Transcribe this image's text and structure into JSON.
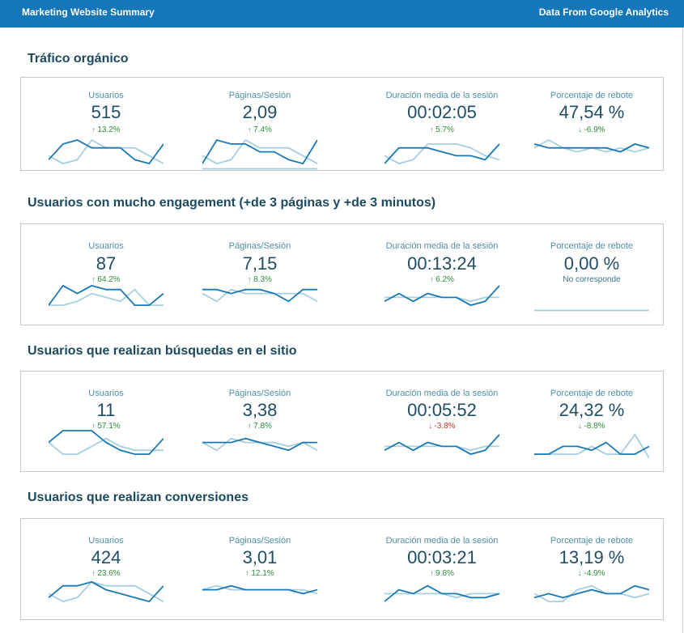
{
  "header": {
    "title": "Marketing Website Summary",
    "source": "Data From Google Analytics"
  },
  "colors": {
    "primary_line": "#1a78b4",
    "secondary_line": "#a5cfe0",
    "header_bg": "#1576b8"
  },
  "sections": [
    {
      "title": "Tráfico orgánico",
      "metrics": [
        {
          "label": "Usuarios",
          "value": "515",
          "delta": "13.2%",
          "trend": "up",
          "primary": [
            2,
            6,
            7,
            5,
            5,
            5,
            2,
            1,
            6
          ],
          "secondary": [
            3,
            1,
            2,
            7,
            5,
            5,
            5,
            3,
            1
          ],
          "baseline": false
        },
        {
          "label": "Páginas/Sesión",
          "value": "2,09",
          "delta": "7.4%",
          "trend": "up",
          "primary": [
            1,
            7,
            6,
            6,
            4,
            4,
            2,
            1,
            7
          ],
          "secondary": [
            3,
            1,
            2,
            7,
            5,
            5,
            5,
            3,
            1
          ],
          "baseline": true
        },
        {
          "label": "Duración media de la sesión",
          "value": "00:02:05",
          "delta": "5.7%",
          "trend": "up",
          "primary": [
            1,
            5,
            5,
            5,
            4,
            3,
            3,
            2,
            6
          ],
          "secondary": [
            3,
            1,
            2,
            6,
            6,
            6,
            5,
            3,
            2
          ],
          "baseline": false
        },
        {
          "label": "Porcentaje de rebote",
          "value": "47,54 %",
          "delta": "-6.9%",
          "trend": "down",
          "primary": [
            6,
            5,
            5,
            5,
            5,
            5,
            4,
            6,
            5
          ],
          "secondary": [
            5,
            7,
            5,
            4,
            5,
            4,
            5,
            4,
            5
          ],
          "baseline": false
        }
      ]
    },
    {
      "title": "Usuarios con mucho engagement (+de 3 páginas y +de 3 minutos)",
      "metrics": [
        {
          "label": "Usuarios",
          "value": "87",
          "delta": "64.2%",
          "trend": "up",
          "primary": [
            1,
            6,
            4,
            6,
            5,
            5,
            1,
            1,
            4
          ],
          "secondary": [
            1,
            1,
            2,
            4,
            3,
            2,
            5,
            1,
            1
          ],
          "baseline": false
        },
        {
          "label": "Páginas/Sesión",
          "value": "7,15",
          "delta": "8.3%",
          "trend": "up",
          "primary": [
            5,
            5,
            4,
            5,
            5,
            4,
            2,
            5,
            5
          ],
          "secondary": [
            4,
            2,
            5,
            4,
            4,
            4,
            4,
            4,
            2
          ],
          "baseline": false
        },
        {
          "label": "Duración media de la sesión",
          "value": "00:13:24",
          "delta": "6.2%",
          "trend": "up",
          "primary": [
            2,
            4,
            2,
            4,
            3,
            3,
            1,
            2,
            6
          ],
          "secondary": [
            3,
            3,
            3,
            3,
            3,
            3,
            2,
            3,
            3
          ],
          "baseline": false
        },
        {
          "label": "Porcentaje de rebote",
          "value": "0,00 %",
          "delta": "No corresponde",
          "trend": "na",
          "primary": [],
          "secondary": [],
          "baseline": true
        }
      ]
    },
    {
      "title": "Usuarios que realizan búsquedas en el sitio",
      "metrics": [
        {
          "label": "Usuarios",
          "value": "11",
          "delta": "57.1%",
          "trend": "up",
          "primary": [
            4,
            7,
            7,
            7,
            4,
            2,
            1,
            1,
            5
          ],
          "secondary": [
            4,
            1,
            1,
            3,
            5,
            3,
            2,
            2,
            2
          ],
          "baseline": false
        },
        {
          "label": "Páginas/Sesión",
          "value": "3,38",
          "delta": "7.8%",
          "trend": "up",
          "primary": [
            4,
            4,
            4,
            5,
            4,
            3,
            2,
            4,
            4
          ],
          "secondary": [
            4,
            2,
            5,
            4,
            4,
            4,
            3,
            4,
            2
          ],
          "baseline": false
        },
        {
          "label": "Duración media de la sesión",
          "value": "00:05:52",
          "delta": "-3.8%",
          "trend": "bad",
          "primary": [
            2,
            4,
            2,
            4,
            3,
            3,
            1,
            2,
            6
          ],
          "secondary": [
            3,
            3,
            3,
            3,
            3,
            3,
            2,
            3,
            3
          ],
          "baseline": false
        },
        {
          "label": "Porcentaje de rebote",
          "value": "24,32 %",
          "delta": "-8.8%",
          "trend": "down",
          "primary": [
            1,
            1,
            3,
            3,
            2,
            4,
            1,
            1,
            3
          ],
          "secondary": [
            1,
            1,
            1,
            1,
            3,
            1,
            1,
            6,
            0
          ],
          "baseline": false
        }
      ]
    },
    {
      "title": "Usuarios que realizan conversiones",
      "metrics": [
        {
          "label": "Usuarios",
          "value": "424",
          "delta": "23.6%",
          "trend": "up",
          "primary": [
            2,
            5,
            5,
            6,
            4,
            3,
            2,
            1,
            5
          ],
          "secondary": [
            3,
            1,
            2,
            6,
            5,
            5,
            5,
            3,
            1
          ],
          "baseline": false
        },
        {
          "label": "Páginas/Sesión",
          "value": "3,01",
          "delta": "12.1%",
          "trend": "up",
          "primary": [
            4,
            4,
            5,
            4,
            4,
            4,
            4,
            3,
            4
          ],
          "secondary": [
            4,
            5,
            4,
            4,
            4,
            4,
            4,
            4,
            3
          ],
          "baseline": false
        },
        {
          "label": "Duración media de la sesión",
          "value": "00:03:21",
          "delta": "9.8%",
          "trend": "up",
          "primary": [
            1,
            4,
            3,
            5,
            3,
            3,
            2,
            2,
            3
          ],
          "secondary": [
            3,
            3,
            3,
            3,
            3,
            2,
            3,
            3,
            3
          ],
          "baseline": false
        },
        {
          "label": "Porcentaje de rebote",
          "value": "13,19 %",
          "delta": "-4.9%",
          "trend": "down",
          "primary": [
            2,
            3,
            2,
            3,
            4,
            3,
            3,
            5,
            4
          ],
          "secondary": [
            3,
            1,
            1,
            4,
            5,
            3,
            3,
            2,
            3
          ],
          "baseline": false
        }
      ]
    }
  ]
}
